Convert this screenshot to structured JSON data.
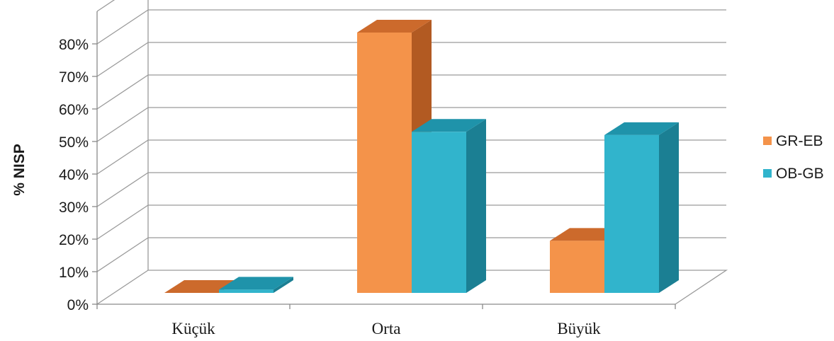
{
  "chart_data": {
    "type": "bar",
    "ylabel": "% NISP",
    "categories": [
      "Küçük",
      "Orta",
      "Büyük"
    ],
    "series": [
      {
        "name": "GR-EB",
        "values": [
          0,
          80,
          16
        ],
        "colors": {
          "front": "#f4934a",
          "top": "#cc6a2c",
          "side": "#b25a22"
        }
      },
      {
        "name": "OB-GB",
        "values": [
          1,
          49.5,
          48.5
        ],
        "colors": {
          "front": "#31b4cc",
          "top": "#1f93aa",
          "side": "#1b7f93"
        }
      }
    ],
    "yticks": [
      "0%",
      "10%",
      "20%",
      "30%",
      "40%",
      "50%",
      "60%",
      "70%",
      "80%"
    ],
    "ylim": [
      0,
      80
    ],
    "grid": true,
    "legend": "right"
  }
}
